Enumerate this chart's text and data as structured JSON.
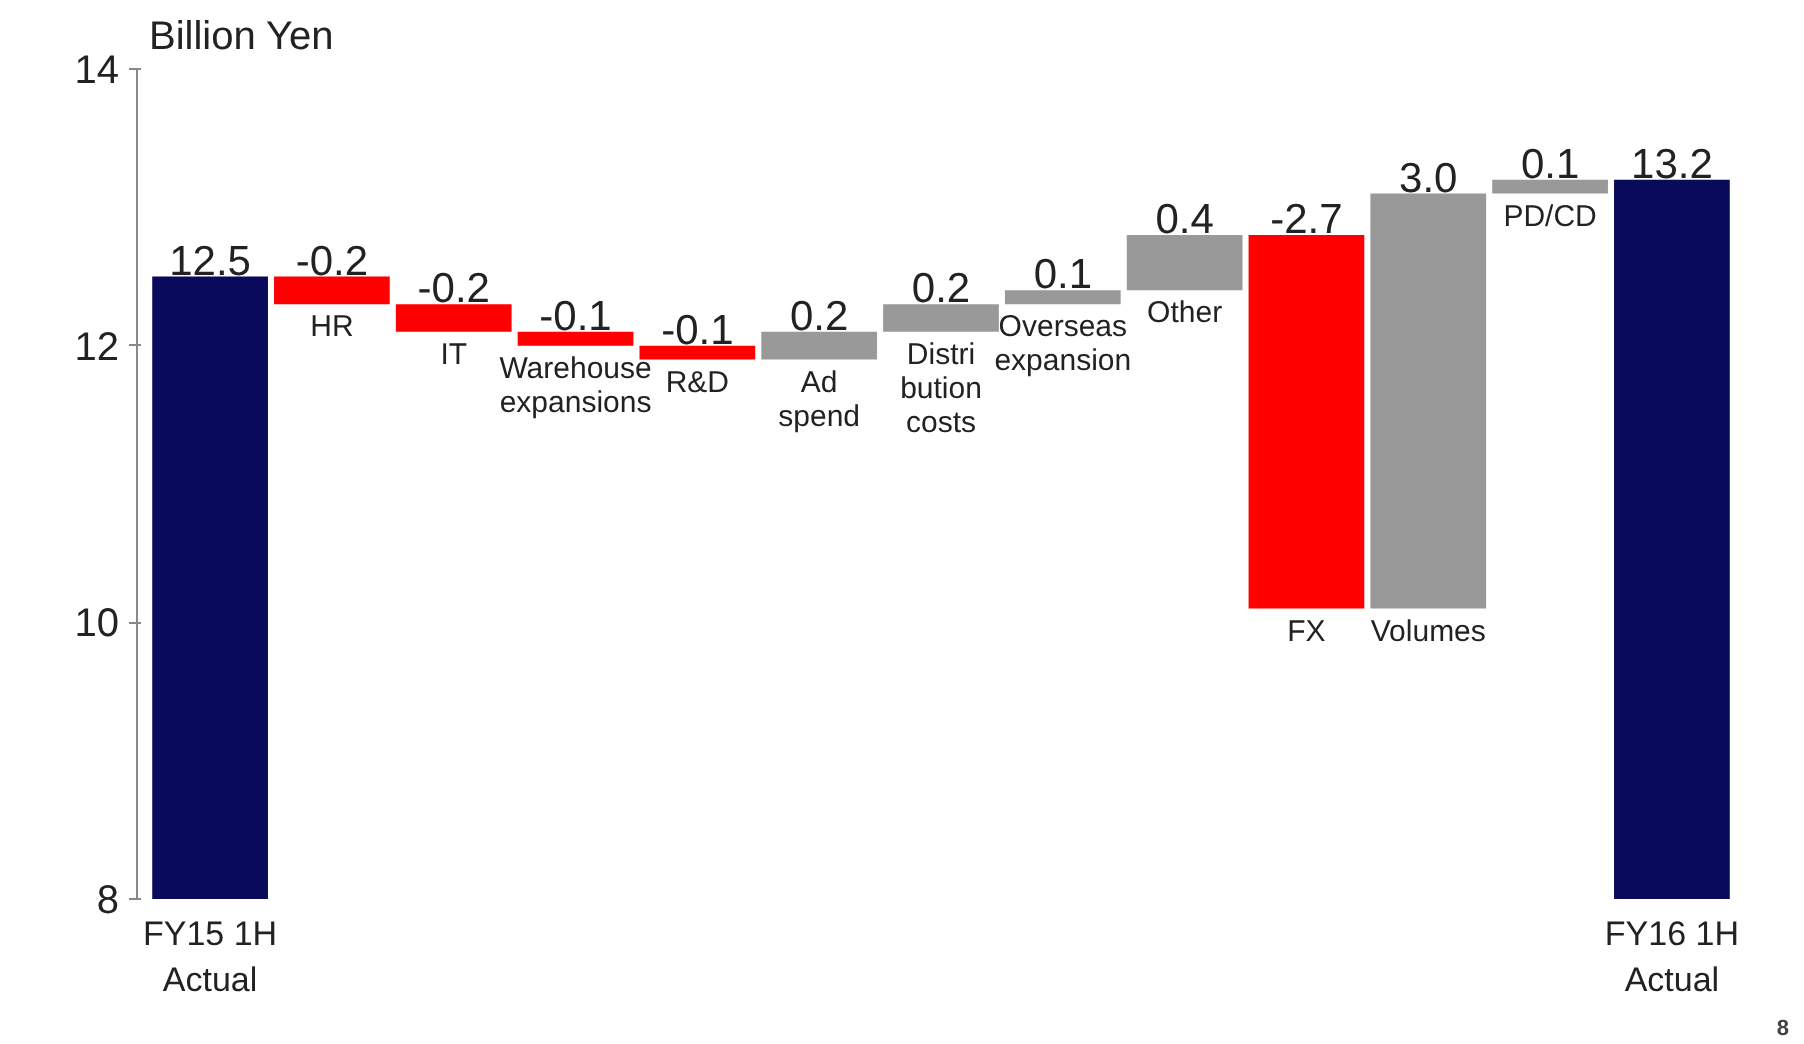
{
  "chart_data": {
    "type": "bar",
    "ylabel": "Billion Yen",
    "categories": [
      "FY15 1H\nActual",
      "HR",
      "IT",
      "Warehouse\nexpansions",
      "R&D",
      "Ad\nspend",
      "Distri\nbution\ncosts",
      "Overseas\nexpansion",
      "Other",
      "FX",
      "Volumes",
      "PD/CD",
      "FY16 1H\nActual"
    ],
    "values": [
      12.5,
      -0.2,
      -0.2,
      -0.1,
      -0.1,
      0.2,
      0.2,
      0.1,
      0.4,
      -2.7,
      3.0,
      0.1,
      13.2
    ],
    "base": [
      null,
      12.5,
      12.3,
      12.1,
      12.0,
      11.9,
      12.1,
      12.3,
      12.4,
      12.8,
      10.1,
      13.1,
      null
    ],
    "colors": [
      "#0a0a5c",
      "#ff0000",
      "#ff0000",
      "#ff0000",
      "#ff0000",
      "#999999",
      "#999999",
      "#999999",
      "#999999",
      "#ff0000",
      "#999999",
      "#999999",
      "#0a0a5c"
    ],
    "value_labels": [
      "12.5",
      "-0.2",
      "-0.2",
      "-0.1",
      "-0.1",
      "0.2",
      "0.2",
      "0.1",
      "0.4",
      "-2.7",
      "3.0",
      "0.1",
      "13.2"
    ],
    "ylim": [
      8,
      14
    ],
    "yticks": [
      8,
      10,
      12,
      14
    ],
    "grid": false,
    "annotations": [
      "8"
    ]
  }
}
